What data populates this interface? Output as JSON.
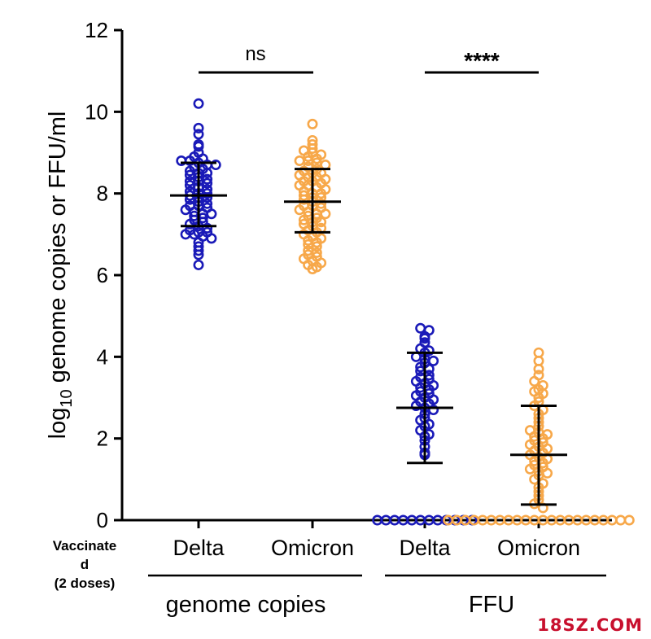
{
  "chart_data": {
    "type": "scatter",
    "ylabel_prefix": "log",
    "ylabel_sub": "10",
    "ylabel_rest": " genome copies or FFU/ml",
    "ylim": [
      0,
      12
    ],
    "yticks": [
      "0",
      "2",
      "4",
      "6",
      "8",
      "10",
      "12"
    ],
    "row_label": [
      "Vaccinate",
      "d",
      "(2 doses)"
    ],
    "categories": [
      "Delta",
      "Omicron",
      "Delta",
      "Omicron"
    ],
    "groups": [
      "genome copies",
      "FFU"
    ],
    "significance": [
      "ns",
      "****"
    ],
    "colors": {
      "Delta": "#1a1ab8",
      "Omicron": "#f7a84a",
      "axis": "#000000"
    },
    "series": [
      {
        "category": "Delta",
        "group": "genome copies",
        "color": "#1a1ab8",
        "mean": 7.95,
        "sd_upper": 8.75,
        "sd_lower": 7.2,
        "values": [
          10.2,
          9.6,
          9.45,
          9.2,
          9.15,
          9.0,
          8.9,
          8.85,
          8.8,
          8.8,
          8.75,
          8.7,
          8.7,
          8.65,
          8.6,
          8.55,
          8.5,
          8.5,
          8.45,
          8.4,
          8.35,
          8.3,
          8.3,
          8.25,
          8.2,
          8.15,
          8.1,
          8.05,
          8.0,
          8.0,
          7.95,
          7.9,
          7.9,
          7.85,
          7.8,
          7.75,
          7.7,
          7.7,
          7.65,
          7.6,
          7.55,
          7.5,
          7.5,
          7.45,
          7.4,
          7.35,
          7.3,
          7.25,
          7.2,
          7.15,
          7.1,
          7.05,
          7.05,
          7.0,
          7.0,
          6.95,
          6.9,
          6.8,
          6.7,
          6.6,
          6.5,
          6.25
        ]
      },
      {
        "category": "Omicron",
        "group": "genome copies",
        "color": "#f7a84a",
        "mean": 7.8,
        "sd_upper": 8.6,
        "sd_lower": 7.05,
        "values": [
          9.7,
          9.3,
          9.2,
          9.1,
          9.05,
          9.0,
          8.95,
          8.9,
          8.85,
          8.8,
          8.8,
          8.75,
          8.7,
          8.65,
          8.6,
          8.55,
          8.5,
          8.5,
          8.45,
          8.4,
          8.4,
          8.35,
          8.3,
          8.3,
          8.25,
          8.2,
          8.2,
          8.15,
          8.1,
          8.05,
          8.0,
          8.0,
          7.95,
          7.9,
          7.9,
          7.85,
          7.8,
          7.75,
          7.7,
          7.7,
          7.65,
          7.6,
          7.55,
          7.5,
          7.5,
          7.45,
          7.4,
          7.35,
          7.3,
          7.3,
          7.25,
          7.2,
          7.15,
          7.1,
          7.05,
          7.0,
          6.95,
          6.9,
          6.85,
          6.8,
          6.75,
          6.7,
          6.6,
          6.55,
          6.5,
          6.45,
          6.4,
          6.35,
          6.3,
          6.25,
          6.2,
          6.15
        ]
      },
      {
        "category": "Delta",
        "group": "FFU",
        "color": "#1a1ab8",
        "mean": 2.75,
        "sd_upper": 4.1,
        "sd_lower": 1.4,
        "values": [
          4.7,
          4.65,
          4.5,
          4.45,
          4.35,
          4.2,
          4.15,
          4.1,
          4.0,
          3.95,
          3.9,
          3.85,
          3.75,
          3.7,
          3.65,
          3.55,
          3.5,
          3.45,
          3.4,
          3.35,
          3.3,
          3.25,
          3.2,
          3.15,
          3.1,
          3.05,
          3.0,
          2.95,
          2.9,
          2.85,
          2.8,
          2.75,
          2.7,
          2.6,
          2.5,
          2.45,
          2.35,
          2.3,
          2.2,
          2.1,
          2.05,
          1.95,
          1.8,
          1.65,
          1.6,
          0,
          0,
          0,
          0,
          0,
          0,
          0,
          0,
          0,
          0,
          0,
          0
        ]
      },
      {
        "category": "Omicron",
        "group": "FFU",
        "color": "#f7a84a",
        "mean": 1.6,
        "sd_upper": 2.8,
        "sd_lower": 0.38,
        "values": [
          4.1,
          3.9,
          3.7,
          3.55,
          3.4,
          3.3,
          3.2,
          3.15,
          3.1,
          3.0,
          2.9,
          2.8,
          2.7,
          2.6,
          2.5,
          2.4,
          2.3,
          2.2,
          2.15,
          2.1,
          2.05,
          2.0,
          1.95,
          1.9,
          1.85,
          1.8,
          1.75,
          1.7,
          1.65,
          1.6,
          1.55,
          1.5,
          1.45,
          1.4,
          1.35,
          1.3,
          1.25,
          1.2,
          1.15,
          1.1,
          1.0,
          0.9,
          0.8,
          0.7,
          0.6,
          0.5,
          0.4,
          0.3,
          0,
          0,
          0,
          0,
          0,
          0,
          0,
          0,
          0,
          0,
          0,
          0,
          0,
          0,
          0,
          0,
          0,
          0,
          0,
          0,
          0,
          0
        ]
      }
    ]
  },
  "watermark": {
    "text": "18SZ.COM",
    "color": "#c8102e"
  }
}
